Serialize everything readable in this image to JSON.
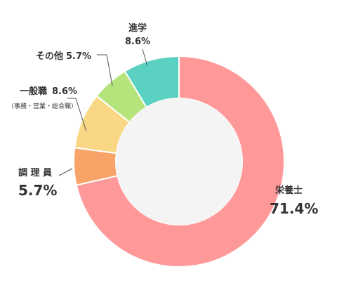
{
  "chart_data": {
    "type": "pie",
    "donut": true,
    "title": "",
    "categories": [
      "栄養士",
      "調理員",
      "一般職",
      "その他",
      "進学"
    ],
    "values": [
      71.4,
      5.7,
      8.6,
      5.7,
      8.6
    ],
    "value_labels": [
      "71.4%",
      "5.7%",
      "8.6%",
      "5.7%",
      "8.6%"
    ],
    "colors": [
      "#ff9999",
      "#f8a468",
      "#f9d784",
      "#b5e37c",
      "#5bd1c1"
    ],
    "center_color": "#f4f4f4",
    "labels": {
      "eiyoushi": {
        "name": "栄養士",
        "pct": "71.4%"
      },
      "chouriin": {
        "name": "調 理 員",
        "pct": "5.7%"
      },
      "ippanshoku": {
        "name": "一般職",
        "pct": "8.6%",
        "note": "（事務・営業・総合職）"
      },
      "sonota": {
        "name": "その他",
        "pct": "5.7%"
      },
      "shingaku": {
        "name": "進学",
        "pct": "8.6%"
      }
    },
    "legend": "none"
  }
}
